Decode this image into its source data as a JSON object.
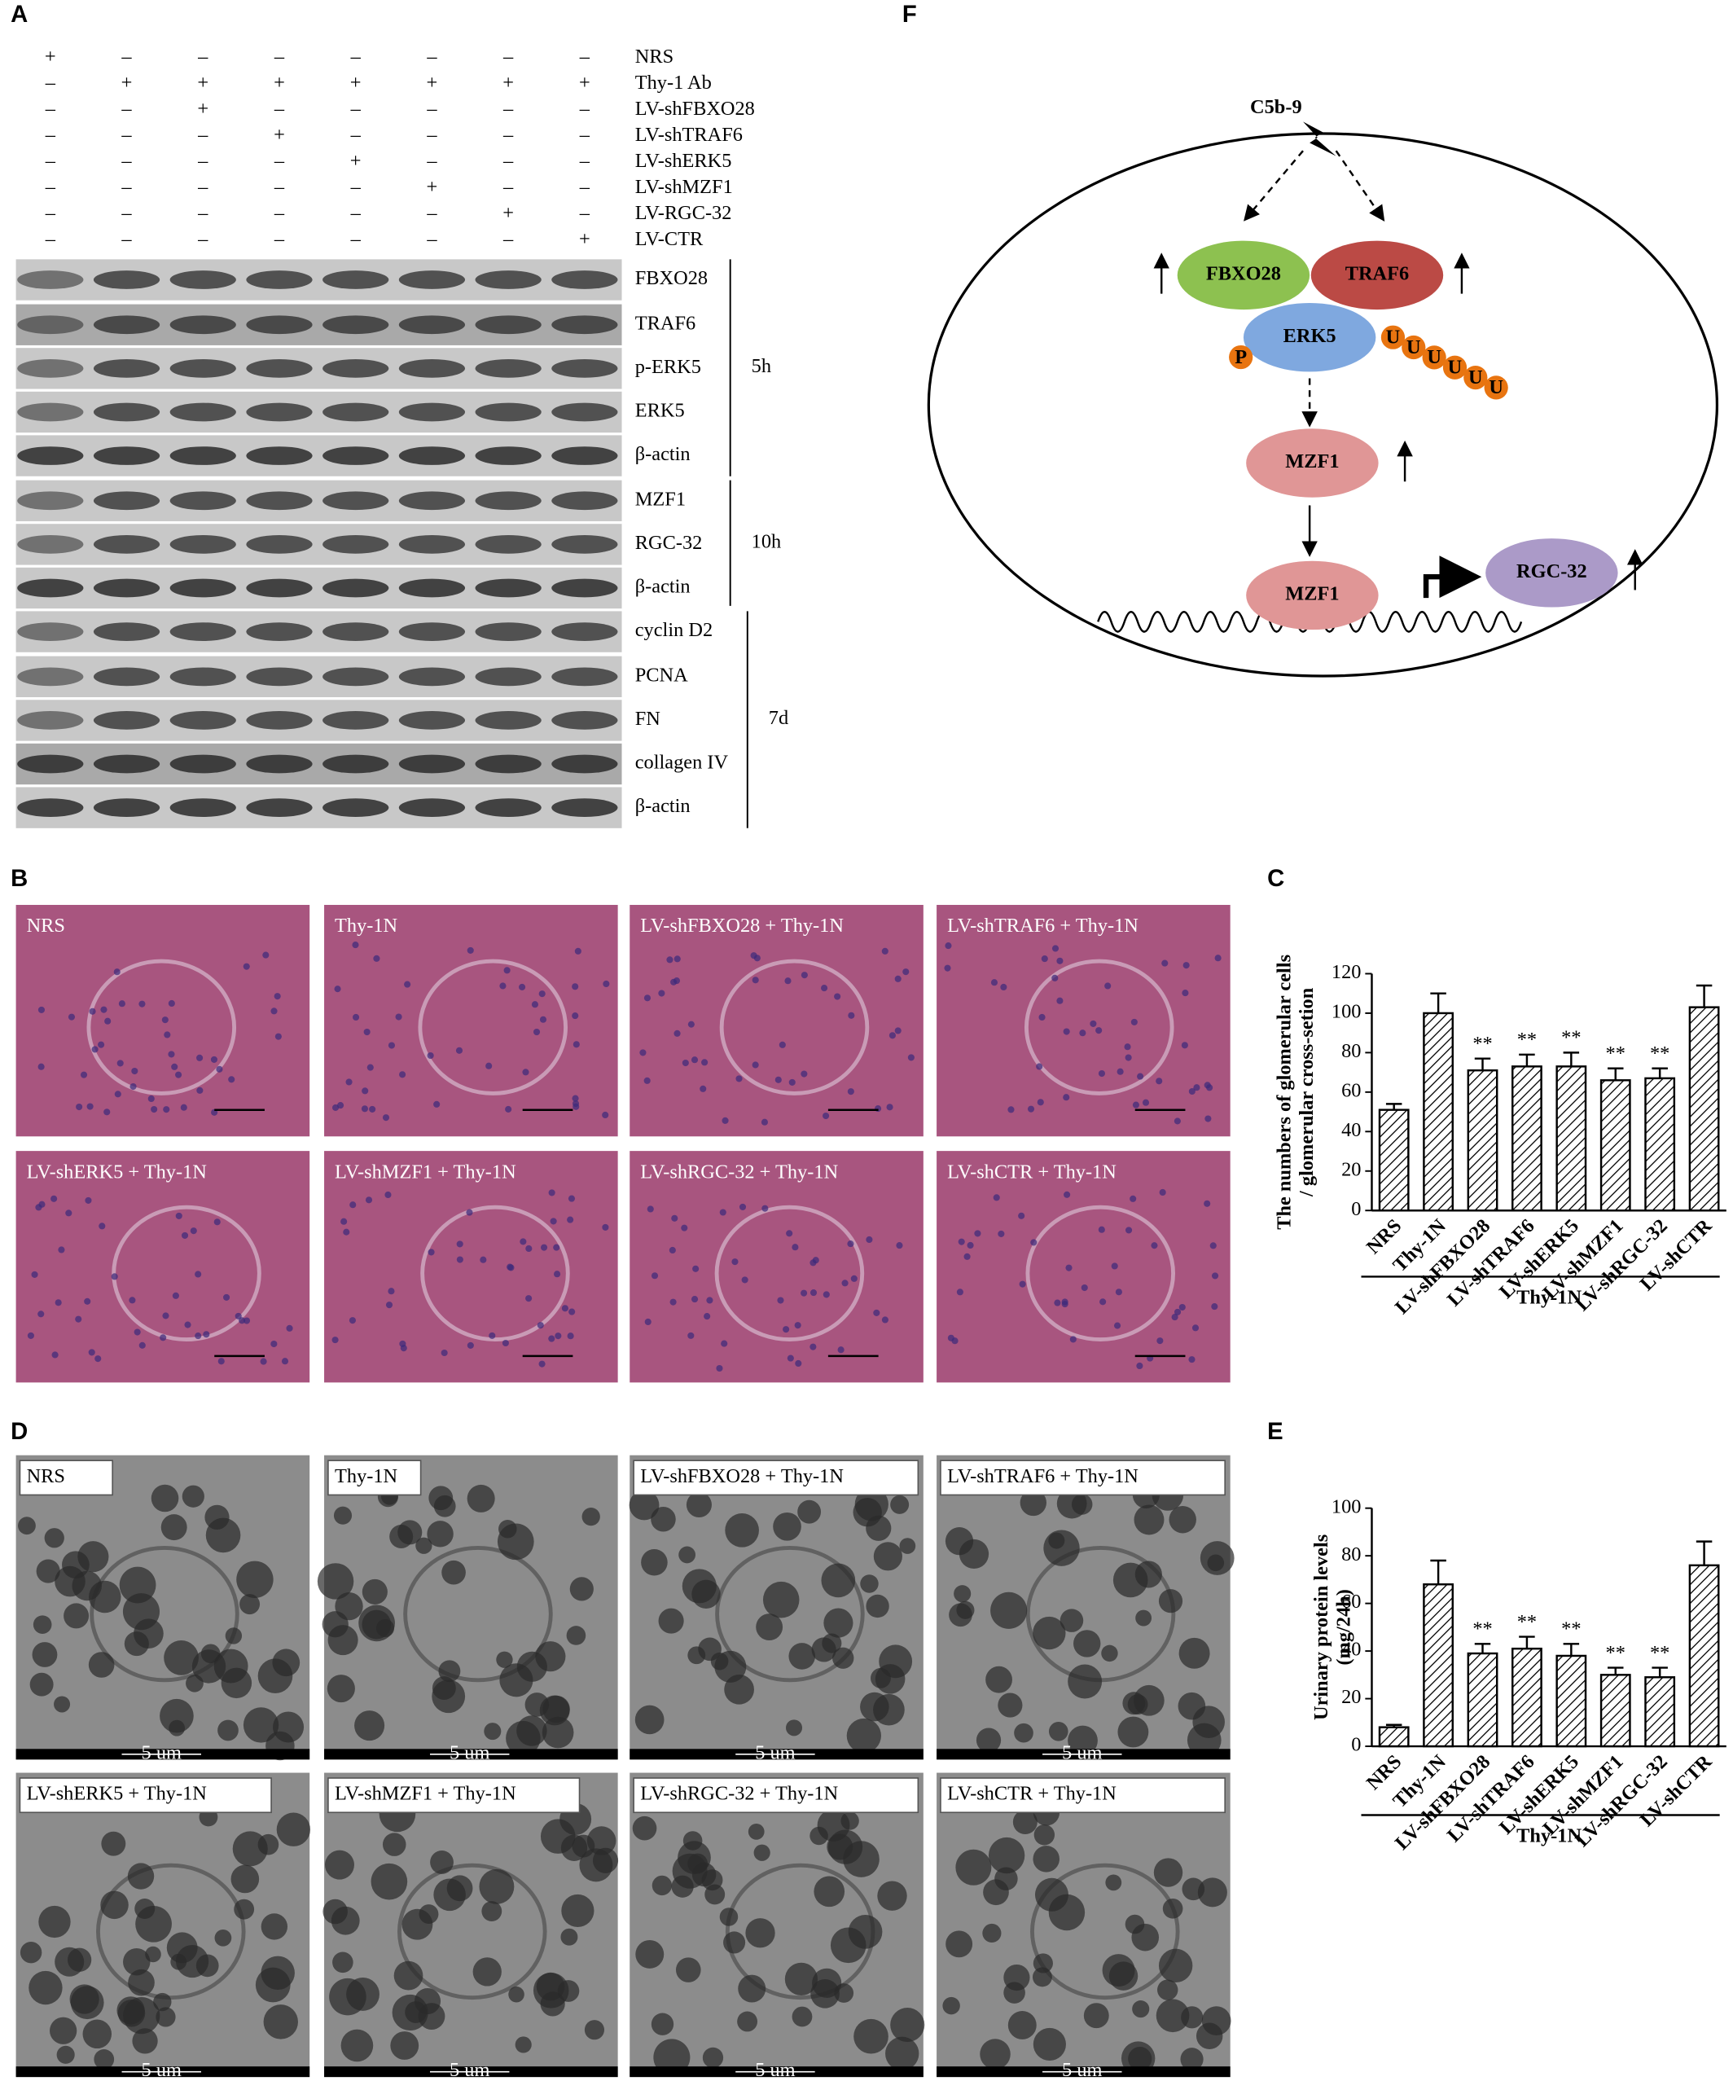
{
  "panel_labels": [
    "A",
    "B",
    "C",
    "D",
    "E",
    "F"
  ],
  "western_blot": {
    "treatments": [
      {
        "name": "NRS",
        "signs": [
          "+",
          "–",
          "–",
          "–",
          "–",
          "–",
          "–",
          "–"
        ]
      },
      {
        "name": "Thy-1 Ab",
        "signs": [
          "–",
          "+",
          "+",
          "+",
          "+",
          "+",
          "+",
          "+"
        ]
      },
      {
        "name": "LV-shFBXO28",
        "signs": [
          "–",
          "–",
          "+",
          "–",
          "–",
          "–",
          "–",
          "–"
        ]
      },
      {
        "name": "LV-shTRAF6",
        "signs": [
          "–",
          "–",
          "–",
          "+",
          "–",
          "–",
          "–",
          "–"
        ]
      },
      {
        "name": "LV-shERK5",
        "signs": [
          "–",
          "–",
          "–",
          "–",
          "+",
          "–",
          "–",
          "–"
        ]
      },
      {
        "name": "LV-shMZF1",
        "signs": [
          "–",
          "–",
          "–",
          "–",
          "–",
          "+",
          "–",
          "–"
        ]
      },
      {
        "name": "LV-RGC-32",
        "signs": [
          "–",
          "–",
          "–",
          "–",
          "–",
          "–",
          "+",
          "–"
        ]
      },
      {
        "name": "LV-CTR",
        "signs": [
          "–",
          "–",
          "–",
          "–",
          "–",
          "–",
          "–",
          "+"
        ]
      }
    ],
    "blots": [
      "FBXO28",
      "TRAF6",
      "p-ERK5",
      "ERK5",
      "β-actin",
      "MZF1",
      "RGC-32",
      "β-actin",
      "cyclin D2",
      "PCNA",
      "FN",
      "collagen IV",
      "β-actin"
    ],
    "time_points": [
      "5h",
      "10h",
      "7d"
    ]
  },
  "pathway": {
    "stimulus": "C5b-9",
    "nodes": [
      "FBXO28",
      "TRAF6",
      "ERK5",
      "MZF1",
      "MZF1",
      "RGC-32"
    ],
    "phospho": "P",
    "ubiquitin": [
      "U",
      "U",
      "U",
      "U",
      "U",
      "U"
    ]
  },
  "histology": {
    "labels": [
      "NRS",
      "Thy-1N",
      "LV-shFBXO28 + Thy-1N",
      "LV-shTRAF6 + Thy-1N",
      "LV-shERK5 + Thy-1N",
      "LV-shMZF1 + Thy-1N",
      "LV-shRGC-32 + Thy-1N",
      "LV-shCTR + Thy-1N"
    ]
  },
  "electron_microscopy": {
    "labels": [
      "NRS",
      "Thy-1N",
      "LV-shFBXO28 + Thy-1N",
      "LV-shTRAF6 + Thy-1N",
      "LV-shERK5 + Thy-1N",
      "LV-shMZF1 + Thy-1N",
      "LV-shRGC-32 + Thy-1N",
      "LV-shCTR + Thy-1N"
    ],
    "scale_bar": "5 um"
  },
  "chart_data": [
    {
      "type": "bar",
      "y_label": [
        "The numbers of glomerular cells",
        "/ glomerular cross-setion"
      ],
      "categories": [
        "NRS",
        "Thy-1N",
        "LV-shFBXO28",
        "LV-shTRAF6",
        "LV-shERK5",
        "LV-shMZF1",
        "LV-shRGC-32",
        "LV-shCTR"
      ],
      "values": [
        51,
        100,
        71,
        73,
        73,
        66,
        67,
        103
      ],
      "errors": [
        3,
        10,
        6,
        6,
        7,
        6,
        5,
        11
      ],
      "annotations": [
        null,
        null,
        "**",
        "**",
        "**",
        "**",
        "**",
        null
      ],
      "x_group_label": "Thy-1N",
      "color": "#000000",
      "ylim": [
        0,
        120
      ],
      "yticks": [
        0,
        20,
        40,
        60,
        80,
        100,
        120
      ]
    },
    {
      "type": "bar",
      "y_label": [
        "Urinary protein levels",
        "(mg/24h)"
      ],
      "categories": [
        "NRS",
        "Thy-1N",
        "LV-shFBXO28",
        "LV-shTRAF6",
        "LV-shERK5",
        "LV-shMZF1",
        "LV-shRGC-32",
        "LV-shCTR"
      ],
      "values": [
        8,
        68,
        39,
        41,
        38,
        30,
        29,
        76
      ],
      "errors": [
        1,
        10,
        4,
        5,
        5,
        3,
        4,
        10
      ],
      "annotations": [
        null,
        null,
        "**",
        "**",
        "**",
        "**",
        "**",
        null
      ],
      "x_group_label": "Thy-1N",
      "color": "#000000",
      "ylim": [
        0,
        100
      ],
      "yticks": [
        0,
        20,
        40,
        60,
        80,
        100
      ]
    }
  ]
}
